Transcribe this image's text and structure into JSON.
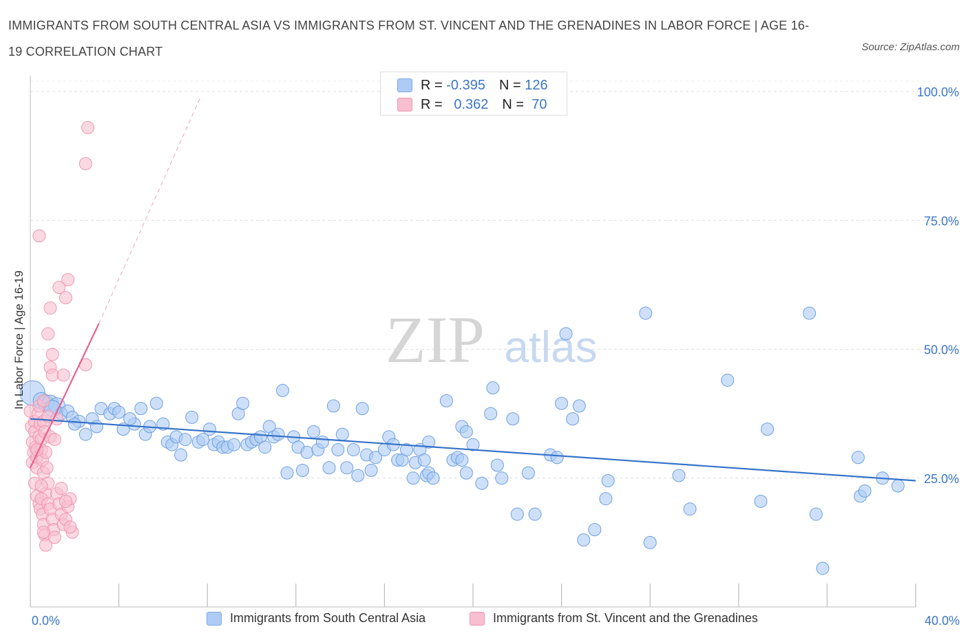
{
  "header": {
    "title": "IMMIGRANTS FROM SOUTH CENTRAL ASIA VS IMMIGRANTS FROM ST. VINCENT AND THE GRENADINES IN LABOR FORCE | AGE 16-19 CORRELATION CHART",
    "source": "Source: ZipAtlas.com"
  },
  "legend": {
    "rows": [
      {
        "r_label": "R =",
        "r_value": "-0.395",
        "n_label": "N =",
        "n_value": "126",
        "color": "#aecbf5",
        "stroke": "#7aa8e6"
      },
      {
        "r_label": "R =",
        "r_value": "0.362",
        "n_label": "N =",
        "n_value": "70",
        "color": "#f8bfd0",
        "stroke": "#ee97b2"
      }
    ]
  },
  "chart_data": {
    "type": "scatter",
    "title": "IMMIGRANTS FROM SOUTH CENTRAL ASIA VS IMMIGRANTS FROM ST. VINCENT AND THE GRENADINES IN LABOR FORCE | AGE 16-19 CORRELATION CHART",
    "xlabel": "",
    "ylabel": "In Labor Force | Age 16-19",
    "xlim": [
      0,
      40
    ],
    "ylim": [
      0,
      100
    ],
    "x_tick_labels": [
      "0.0%",
      "40.0%"
    ],
    "y_tick_values": [
      25,
      50,
      75,
      100
    ],
    "y_tick_labels": [
      "25.0%",
      "50.0%",
      "75.0%",
      "100.0%"
    ],
    "watermark": {
      "zip": "ZIP",
      "atlas": "atlas"
    },
    "series": [
      {
        "name": "Immigrants from South Central Asia",
        "color": "#aecbf5",
        "stroke": "#6d9fe0",
        "line_color": "#3472c9",
        "trend": {
          "x0": 0,
          "y0": 36.5,
          "x1": 40,
          "y1": 24.5
        },
        "points": [
          [
            0.1,
            41.5
          ],
          [
            0.5,
            40
          ],
          [
            0.7,
            39.5
          ],
          [
            0.9,
            39.5
          ],
          [
            1.2,
            39
          ],
          [
            1.4,
            37.5
          ],
          [
            1.7,
            38
          ],
          [
            1.9,
            36.8
          ],
          [
            2.2,
            36
          ],
          [
            2.5,
            33.5
          ],
          [
            2.8,
            36.5
          ],
          [
            3.0,
            35
          ],
          [
            3.2,
            38.5
          ],
          [
            3.6,
            37.5
          ],
          [
            3.8,
            38.5
          ],
          [
            4.0,
            37.8
          ],
          [
            4.2,
            34.5
          ],
          [
            4.7,
            35.5
          ],
          [
            5.0,
            38.5
          ],
          [
            5.2,
            33.5
          ],
          [
            5.4,
            35
          ],
          [
            5.7,
            39.5
          ],
          [
            6.0,
            35.5
          ],
          [
            6.2,
            32
          ],
          [
            6.4,
            31.5
          ],
          [
            6.6,
            33
          ],
          [
            6.8,
            29.5
          ],
          [
            7.0,
            32.5
          ],
          [
            7.3,
            36.8
          ],
          [
            7.6,
            32
          ],
          [
            7.8,
            32.5
          ],
          [
            8.1,
            34.5
          ],
          [
            8.3,
            31.5
          ],
          [
            8.5,
            32
          ],
          [
            8.7,
            31
          ],
          [
            8.9,
            31
          ],
          [
            9.2,
            31.5
          ],
          [
            9.4,
            37.5
          ],
          [
            9.6,
            39.5
          ],
          [
            9.8,
            31.5
          ],
          [
            10.0,
            32
          ],
          [
            10.2,
            32.5
          ],
          [
            10.4,
            33
          ],
          [
            10.6,
            31
          ],
          [
            10.8,
            35
          ],
          [
            11.0,
            33
          ],
          [
            11.2,
            33.5
          ],
          [
            11.4,
            42
          ],
          [
            11.6,
            26
          ],
          [
            11.9,
            33
          ],
          [
            12.1,
            31
          ],
          [
            12.3,
            26.5
          ],
          [
            12.5,
            30
          ],
          [
            12.8,
            34
          ],
          [
            13.0,
            30.5
          ],
          [
            13.2,
            32
          ],
          [
            13.5,
            27
          ],
          [
            13.7,
            39
          ],
          [
            13.9,
            30.5
          ],
          [
            14.1,
            33.5
          ],
          [
            14.3,
            27
          ],
          [
            14.6,
            30.5
          ],
          [
            14.8,
            25.5
          ],
          [
            15.0,
            38.5
          ],
          [
            15.2,
            29.5
          ],
          [
            15.4,
            26.5
          ],
          [
            15.6,
            29
          ],
          [
            16.0,
            30.5
          ],
          [
            16.2,
            33
          ],
          [
            16.4,
            31.5
          ],
          [
            16.6,
            28.5
          ],
          [
            16.8,
            28.5
          ],
          [
            17.0,
            30.5
          ],
          [
            17.4,
            28
          ],
          [
            17.6,
            30.5
          ],
          [
            17.8,
            28.5
          ],
          [
            18.0,
            32
          ],
          [
            17.3,
            25
          ],
          [
            17.9,
            25.5
          ],
          [
            18.0,
            26
          ],
          [
            18.2,
            25
          ],
          [
            18.8,
            40
          ],
          [
            19.1,
            28.5
          ],
          [
            19.3,
            29
          ],
          [
            19.5,
            28.5
          ],
          [
            19.7,
            26
          ],
          [
            19.5,
            35
          ],
          [
            19.7,
            34
          ],
          [
            20.0,
            31.5
          ],
          [
            20.4,
            24
          ],
          [
            20.8,
            37.5
          ],
          [
            20.9,
            42.5
          ],
          [
            21.1,
            27.5
          ],
          [
            21.3,
            25
          ],
          [
            21.8,
            36.5
          ],
          [
            22.0,
            18
          ],
          [
            22.8,
            18
          ],
          [
            22.5,
            26
          ],
          [
            23.5,
            29.5
          ],
          [
            23.8,
            29
          ],
          [
            24.0,
            39.5
          ],
          [
            24.2,
            53
          ],
          [
            24.5,
            36.5
          ],
          [
            24.8,
            39
          ],
          [
            25.0,
            13
          ],
          [
            25.5,
            15
          ],
          [
            26.0,
            21
          ],
          [
            26.1,
            24.5
          ],
          [
            27.8,
            57
          ],
          [
            28.0,
            12.5
          ],
          [
            29.3,
            25.5
          ],
          [
            29.8,
            19
          ],
          [
            31.5,
            44
          ],
          [
            33.0,
            20.5
          ],
          [
            33.3,
            34.5
          ],
          [
            35.2,
            57
          ],
          [
            35.5,
            18
          ],
          [
            35.8,
            7.5
          ],
          [
            37.4,
            29
          ],
          [
            37.5,
            21.5
          ],
          [
            37.7,
            22.5
          ],
          [
            38.5,
            25
          ],
          [
            39.2,
            23.5
          ],
          [
            1.0,
            38.5
          ],
          [
            2.0,
            35.5
          ],
          [
            4.5,
            36.5
          ]
        ]
      },
      {
        "name": "Immigrants from St. Vincent and the Grenadines",
        "color": "#f8bfd0",
        "stroke": "#ee97b2",
        "line_color": "#e8608e",
        "trend": {
          "x0": 0,
          "y0": 27,
          "x1": 3.1,
          "y1": 55
        },
        "trend_dashed": {
          "x0": 3.1,
          "y0": 55,
          "x1": 7.7,
          "y1": 99
        },
        "points": [
          [
            0.0,
            38
          ],
          [
            0.05,
            35
          ],
          [
            0.1,
            32
          ],
          [
            0.15,
            30
          ],
          [
            0.1,
            28
          ],
          [
            0.2,
            36
          ],
          [
            0.2,
            34
          ],
          [
            0.25,
            31
          ],
          [
            0.3,
            29
          ],
          [
            0.3,
            27
          ],
          [
            0.35,
            37.5
          ],
          [
            0.4,
            33
          ],
          [
            0.4,
            39
          ],
          [
            0.45,
            35.5
          ],
          [
            0.5,
            32.5
          ],
          [
            0.5,
            30.5
          ],
          [
            0.55,
            28.5
          ],
          [
            0.6,
            36
          ],
          [
            0.6,
            26
          ],
          [
            0.65,
            34
          ],
          [
            0.7,
            30
          ],
          [
            0.7,
            22
          ],
          [
            0.75,
            27
          ],
          [
            0.8,
            24
          ],
          [
            0.3,
            21.5
          ],
          [
            0.4,
            20
          ],
          [
            0.45,
            19
          ],
          [
            0.5,
            21
          ],
          [
            0.55,
            18
          ],
          [
            0.6,
            16
          ],
          [
            0.65,
            14
          ],
          [
            0.7,
            12
          ],
          [
            0.8,
            20
          ],
          [
            0.9,
            19
          ],
          [
            1.0,
            17
          ],
          [
            1.05,
            15
          ],
          [
            1.1,
            13.5
          ],
          [
            1.2,
            22
          ],
          [
            1.3,
            20
          ],
          [
            1.4,
            18
          ],
          [
            1.5,
            16
          ],
          [
            1.6,
            17
          ],
          [
            1.7,
            19.5
          ],
          [
            1.8,
            21
          ],
          [
            1.9,
            14.5
          ],
          [
            0.4,
            72
          ],
          [
            2.6,
            93
          ],
          [
            2.5,
            86
          ],
          [
            1.7,
            63.5
          ],
          [
            1.3,
            62
          ],
          [
            1.6,
            60
          ],
          [
            0.9,
            58
          ],
          [
            0.8,
            53
          ],
          [
            1.0,
            49
          ],
          [
            0.9,
            46.5
          ],
          [
            1.0,
            45
          ],
          [
            1.5,
            45
          ],
          [
            2.5,
            47
          ],
          [
            0.6,
            40
          ],
          [
            0.9,
            33
          ],
          [
            1.1,
            32.5
          ],
          [
            0.2,
            24
          ],
          [
            0.3,
            30.5
          ],
          [
            0.8,
            37
          ],
          [
            1.2,
            36.5
          ],
          [
            0.5,
            23.5
          ],
          [
            1.4,
            23
          ],
          [
            1.6,
            20.5
          ],
          [
            0.6,
            14.5
          ],
          [
            1.8,
            15.5
          ]
        ]
      }
    ]
  },
  "bottom_legend": [
    {
      "label": "Immigrants from South Central Asia",
      "color": "#aecbf5",
      "stroke": "#7aa8e6"
    },
    {
      "label": "Immigrants from St. Vincent and the Grenadines",
      "color": "#f8bfd0",
      "stroke": "#ee97b2"
    }
  ]
}
